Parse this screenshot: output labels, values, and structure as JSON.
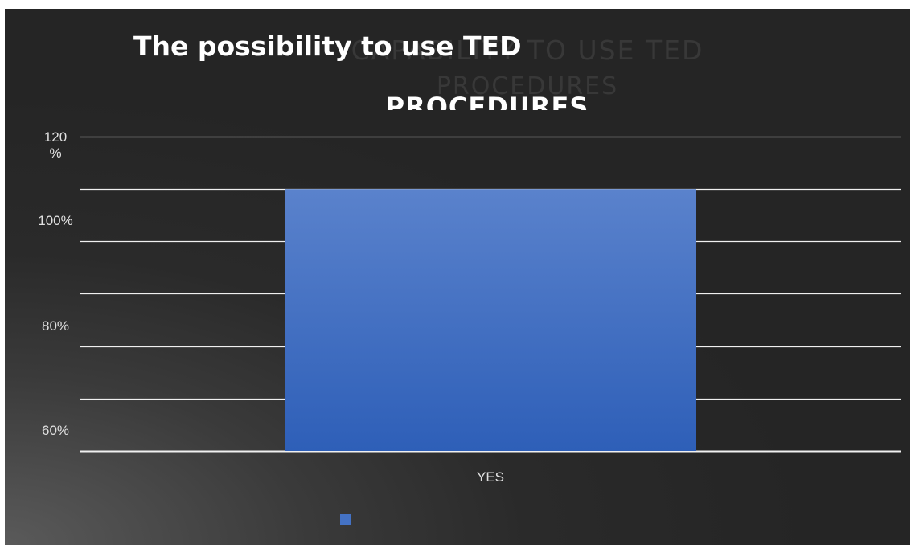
{
  "chart_data": {
    "type": "bar",
    "title": "The possibility to use TED",
    "title_line2": "PROCEDURES",
    "ghost_title": "CAPABILITY TO USE TED",
    "ghost_title_line2": "PROCEDURES",
    "categories": [
      "YES"
    ],
    "series": [
      {
        "values": [
          1.1
        ],
        "color": "#4472c4"
      }
    ],
    "yticks": [
      {
        "value": 0.6,
        "label": "60%"
      },
      {
        "value": 0.8,
        "label": "80%"
      },
      {
        "value": 1.0,
        "label": "100%"
      },
      {
        "value": 1.2,
        "label": "120\n%"
      }
    ],
    "ylim": [
      0.6,
      1.2
    ],
    "grid": true,
    "legend": "bottom",
    "background": "#2a2a2a",
    "text_color": "#e0e0e0"
  }
}
